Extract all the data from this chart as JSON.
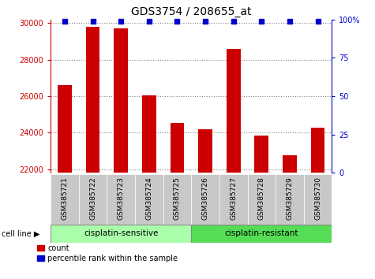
{
  "title": "GDS3754 / 208655_at",
  "samples": [
    "GSM385721",
    "GSM385722",
    "GSM385723",
    "GSM385724",
    "GSM385725",
    "GSM385726",
    "GSM385727",
    "GSM385728",
    "GSM385729",
    "GSM385730"
  ],
  "counts": [
    26600,
    29800,
    29700,
    26050,
    24550,
    24200,
    28600,
    23850,
    22750,
    24300
  ],
  "percentile_ranks": [
    99,
    99,
    99,
    99,
    99,
    99,
    99,
    99,
    99,
    99
  ],
  "ylim_left": [
    21800,
    30200
  ],
  "ylim_right": [
    0,
    100
  ],
  "yticks_left": [
    22000,
    24000,
    26000,
    28000,
    30000
  ],
  "yticks_right": [
    0,
    25,
    50,
    75,
    100
  ],
  "bar_color": "#CC0000",
  "dot_color": "#0000CC",
  "group1_label": "cisplatin-sensitive",
  "group2_label": "cisplatin-resistant",
  "group1_count": 5,
  "group2_count": 5,
  "cell_line_label": "cell line",
  "legend_count_label": "count",
  "legend_pct_label": "percentile rank within the sample",
  "bg_color_samples": "#C8C8C8",
  "bg_color_group1": "#AAFFAA",
  "bg_color_group2": "#55DD55",
  "title_fontsize": 10,
  "tick_fontsize": 7,
  "label_fontsize": 7.5
}
